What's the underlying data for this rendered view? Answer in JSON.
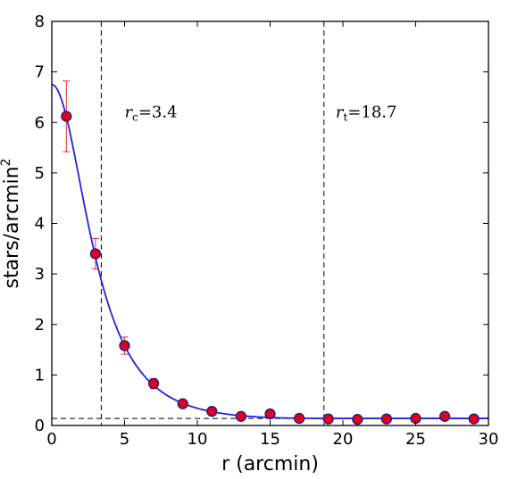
{
  "chart_data": {
    "type": "scatter",
    "xlabel": "r (arcmin)",
    "ylabel_base": "stars/arcmin",
    "ylabel_sup": "2",
    "xlim": [
      0,
      30
    ],
    "ylim": [
      0,
      8
    ],
    "xticks": [
      0,
      5,
      10,
      15,
      20,
      25,
      30
    ],
    "yticks": [
      0,
      1,
      2,
      3,
      4,
      5,
      6,
      7,
      8
    ],
    "grid": false,
    "series": [
      {
        "kind": "points",
        "x": [
          1,
          3,
          5,
          7,
          9,
          11,
          13,
          15,
          17,
          19,
          21,
          23,
          25,
          27,
          29
        ],
        "y": [
          6.12,
          3.4,
          1.58,
          0.83,
          0.43,
          0.28,
          0.18,
          0.23,
          0.14,
          0.13,
          0.12,
          0.13,
          0.14,
          0.18,
          0.13
        ],
        "yerr": [
          0.7,
          0.3,
          0.17,
          0.1,
          0.06,
          0.05,
          0.04,
          0.04,
          0.03,
          0.03,
          0.03,
          0.03,
          0.03,
          0.03,
          0.03
        ],
        "marker_fill": "#e0001a",
        "marker_edge": "#1a1a8c",
        "errorbar_color": "#e03030"
      },
      {
        "kind": "king_fit",
        "f0": 6.61,
        "rc": 3.4,
        "rt": 18.7,
        "background": 0.14,
        "color": "#2323d9"
      }
    ],
    "reference_lines": [
      {
        "orientation": "vertical",
        "x": 3.4,
        "style": "dashed"
      },
      {
        "orientation": "vertical",
        "x": 18.7,
        "style": "dashed"
      },
      {
        "orientation": "horizontal",
        "y": 0.14,
        "style": "dashed"
      }
    ],
    "annotations": [
      {
        "symbol": "r",
        "sub": "c",
        "text": "=3.4",
        "x": 5,
        "y": 6.1
      },
      {
        "symbol": "r",
        "sub": "t",
        "text": "=18.7",
        "x": 19.5,
        "y": 6.1
      }
    ]
  }
}
